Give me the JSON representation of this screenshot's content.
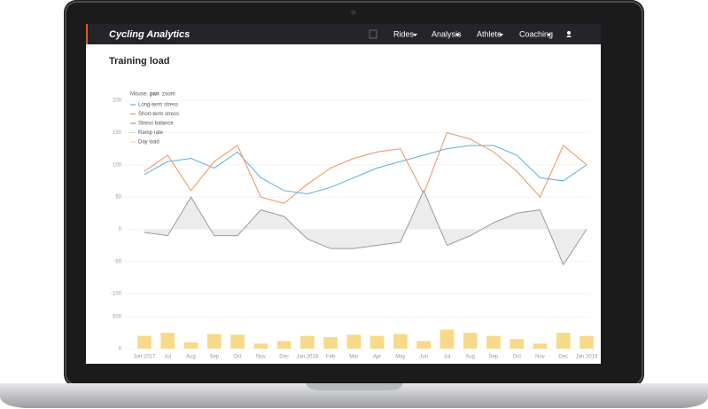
{
  "header": {
    "brand": "Cycling Analytics",
    "nav": [
      "Rides",
      "Analysis",
      "Athlete",
      "Coaching"
    ]
  },
  "page_title": "Training load",
  "chart_data": [
    {
      "type": "line",
      "legend": {
        "mouse_label": "Mouse:",
        "mode": "pan",
        "alt_mode": "zoom",
        "hidden": [
          "Ramp rate"
        ]
      },
      "series": [
        {
          "name": "Long-term stress",
          "color": "#5aaee0",
          "values": [
            85,
            105,
            110,
            95,
            120,
            80,
            60,
            55,
            65,
            80,
            95,
            105,
            115,
            125,
            130,
            130,
            115,
            80,
            75,
            100
          ]
        },
        {
          "name": "Short-term stress",
          "color": "#f0905a",
          "values": [
            90,
            115,
            60,
            105,
            130,
            50,
            40,
            70,
            95,
            110,
            120,
            125,
            55,
            150,
            140,
            120,
            90,
            50,
            130,
            100
          ]
        },
        {
          "name": "Stress balance",
          "color": "#9a9a9a",
          "values": [
            -5,
            -10,
            50,
            -10,
            -10,
            30,
            20,
            -15,
            -30,
            -30,
            -25,
            -20,
            60,
            -25,
            -10,
            10,
            25,
            30,
            -55,
            0
          ]
        }
      ],
      "ylim": [
        -100,
        225
      ],
      "yticks": [
        -100,
        -50,
        0,
        50,
        100,
        150,
        200
      ],
      "grid": true
    },
    {
      "type": "bar",
      "categories": [
        "Jun 2017",
        "Jul",
        "Aug",
        "Sep",
        "Oct",
        "Nov",
        "Dec",
        "Jan 2018",
        "Feb",
        "Mar",
        "Apr",
        "May",
        "Jun",
        "Jul",
        "Aug",
        "Sep",
        "Oct",
        "Nov",
        "Dec",
        "Jan 2019"
      ],
      "series": [
        {
          "name": "Day load",
          "color": "#f7d98a",
          "values": [
            200,
            250,
            100,
            230,
            220,
            80,
            120,
            200,
            180,
            220,
            200,
            230,
            120,
            300,
            250,
            200,
            150,
            80,
            250,
            200
          ]
        }
      ],
      "ylim": [
        0,
        600
      ],
      "yticks": [
        0,
        500
      ],
      "grid": true
    }
  ]
}
